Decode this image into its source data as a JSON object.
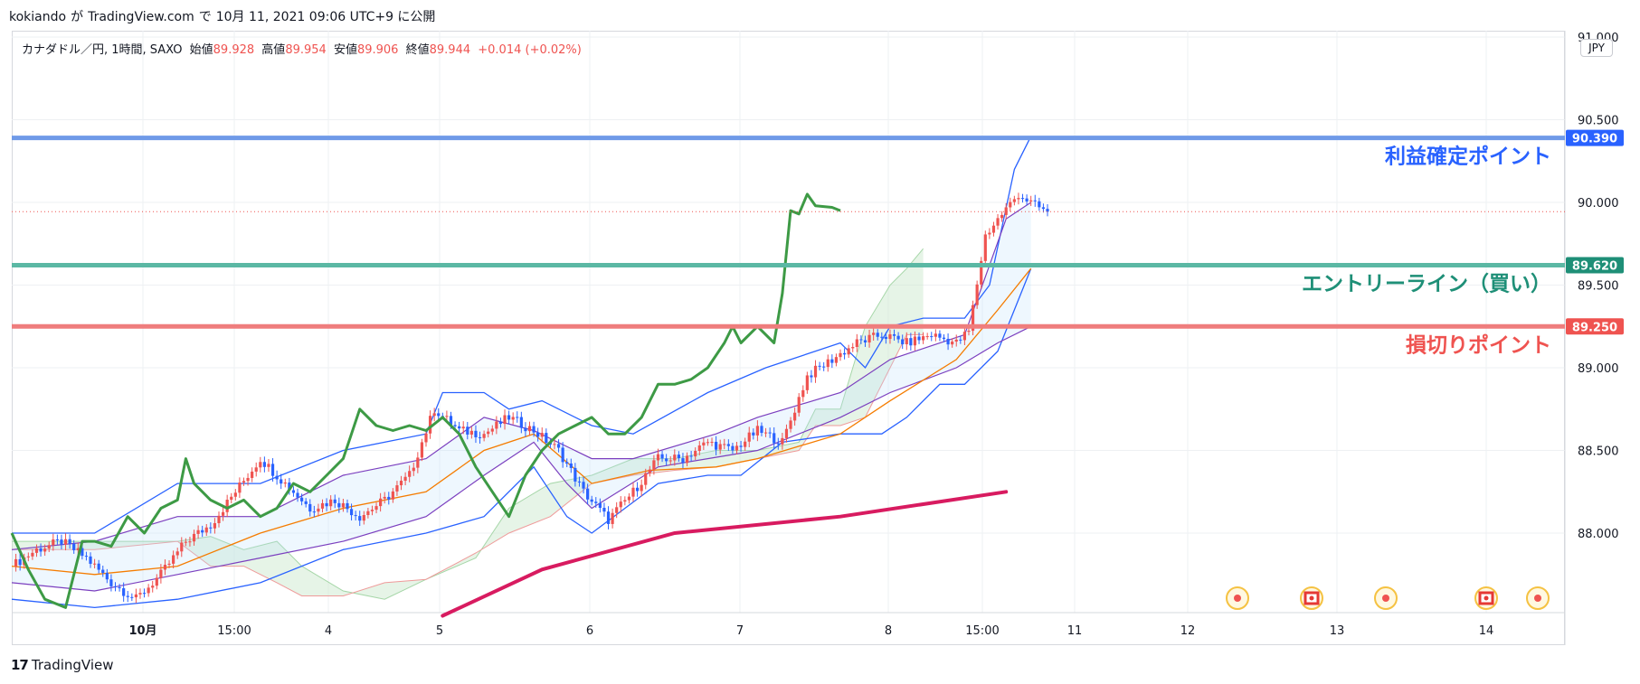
{
  "header": {
    "author": "kokiando",
    "ga": "が",
    "site": "TradingView.com",
    "de": "で",
    "published": "10月 11, 2021 09:06 UTC+9 に公開"
  },
  "legend": {
    "symbol": "カナダドル／円, 1時間, SAXO",
    "open_label": "始値",
    "open": "89.928",
    "high_label": "高値",
    "high": "89.954",
    "low_label": "安値",
    "low": "89.906",
    "close_label": "終値",
    "close": "89.944",
    "change": "+0.014 (+0.02%)"
  },
  "currency": "JPY",
  "footer": {
    "brand_mark": "17",
    "brand": "TradingView"
  },
  "colors": {
    "up": "#ef5350",
    "down": "#2962ff",
    "take_profit": "#6f9ae8",
    "entry": "#5bb8a4",
    "stop_loss": "#ef7d7d",
    "take_profit_label": "#2962ff",
    "entry_label": "#1e8f77",
    "stop_loss_label": "#ef5350",
    "lagging_span": "#3d9a45",
    "long_ma": "#d81b60",
    "bollinger_outer": "#2962ff",
    "bollinger_inner": "#7b3fbf",
    "mid_ma": "#f57c00"
  },
  "chart_data": {
    "type": "candlestick",
    "title": "カナダドル／円, 1時間, SAXO",
    "ylim": [
      87.55,
      91.05
    ],
    "y_ticks": [
      "91.000",
      "90.500",
      "90.000",
      "89.500",
      "89.000",
      "88.500",
      "88.000"
    ],
    "x_ticks": [
      "10月",
      "15:00",
      "4",
      "5",
      "6",
      "7",
      "8",
      "15:00",
      "11",
      "12",
      "13",
      "14"
    ],
    "current_price": 89.944,
    "levels": [
      {
        "name": "利益確定ポイント",
        "price_label": "90.390",
        "value": 90.39
      },
      {
        "name": "エントリーライン（買い）",
        "price_label": "89.620",
        "value": 89.62
      },
      {
        "name": "損切りポイント",
        "price_label": "89.250",
        "value": 89.25
      }
    ],
    "candle_anchors": [
      [
        0,
        87.8
      ],
      [
        6,
        87.9
      ],
      [
        12,
        87.95
      ],
      [
        18,
        87.85
      ],
      [
        24,
        87.7
      ],
      [
        30,
        87.6
      ],
      [
        36,
        87.75
      ],
      [
        42,
        87.95
      ],
      [
        48,
        88.05
      ],
      [
        54,
        88.25
      ],
      [
        60,
        88.45
      ],
      [
        66,
        88.3
      ],
      [
        72,
        88.15
      ],
      [
        78,
        88.2
      ],
      [
        84,
        88.1
      ],
      [
        90,
        88.2
      ],
      [
        96,
        88.35
      ],
      [
        102,
        88.75
      ],
      [
        108,
        88.62
      ],
      [
        114,
        88.6
      ],
      [
        120,
        88.7
      ],
      [
        126,
        88.62
      ],
      [
        132,
        88.5
      ],
      [
        138,
        88.25
      ],
      [
        144,
        88.08
      ],
      [
        150,
        88.25
      ],
      [
        156,
        88.45
      ],
      [
        162,
        88.45
      ],
      [
        168,
        88.55
      ],
      [
        174,
        88.5
      ],
      [
        180,
        88.62
      ],
      [
        186,
        88.55
      ],
      [
        192,
        88.95
      ],
      [
        198,
        89.05
      ],
      [
        204,
        89.15
      ],
      [
        210,
        89.2
      ],
      [
        216,
        89.15
      ],
      [
        222,
        89.2
      ],
      [
        228,
        89.15
      ],
      [
        231,
        89.22
      ],
      [
        235,
        89.8
      ],
      [
        239,
        89.93
      ],
      [
        243,
        90.05
      ],
      [
        247,
        89.98
      ],
      [
        250,
        89.944
      ]
    ],
    "lagging_span": [
      [
        0,
        88.0
      ],
      [
        4,
        87.78
      ],
      [
        8,
        87.6
      ],
      [
        13,
        87.55
      ],
      [
        17,
        87.95
      ],
      [
        20,
        87.95
      ],
      [
        24,
        87.92
      ],
      [
        28,
        88.1
      ],
      [
        32,
        88.0
      ],
      [
        36,
        88.15
      ],
      [
        40,
        88.2
      ],
      [
        42,
        88.45
      ],
      [
        44,
        88.3
      ],
      [
        48,
        88.2
      ],
      [
        52,
        88.15
      ],
      [
        56,
        88.2
      ],
      [
        60,
        88.1
      ],
      [
        64,
        88.15
      ],
      [
        68,
        88.3
      ],
      [
        72,
        88.25
      ],
      [
        76,
        88.35
      ],
      [
        80,
        88.45
      ],
      [
        84,
        88.75
      ],
      [
        88,
        88.65
      ],
      [
        92,
        88.62
      ],
      [
        96,
        88.65
      ],
      [
        100,
        88.62
      ],
      [
        104,
        88.7
      ],
      [
        108,
        88.6
      ],
      [
        112,
        88.4
      ],
      [
        116,
        88.25
      ],
      [
        120,
        88.1
      ],
      [
        124,
        88.35
      ],
      [
        128,
        88.5
      ],
      [
        132,
        88.6
      ],
      [
        136,
        88.65
      ],
      [
        140,
        88.7
      ],
      [
        144,
        88.6
      ],
      [
        148,
        88.6
      ],
      [
        152,
        88.7
      ],
      [
        156,
        88.9
      ],
      [
        160,
        88.9
      ],
      [
        164,
        88.93
      ],
      [
        168,
        89.0
      ],
      [
        172,
        89.15
      ],
      [
        174,
        89.25
      ],
      [
        176,
        89.15
      ],
      [
        180,
        89.25
      ],
      [
        184,
        89.15
      ],
      [
        186,
        89.45
      ],
      [
        188,
        89.95
      ],
      [
        190,
        89.93
      ],
      [
        192,
        90.05
      ],
      [
        194,
        89.98
      ],
      [
        198,
        89.97
      ],
      [
        200,
        89.95
      ]
    ],
    "long_ma": [
      [
        104,
        87.5
      ],
      [
        128,
        87.78
      ],
      [
        160,
        88.0
      ],
      [
        200,
        88.1
      ],
      [
        240,
        88.25
      ]
    ],
    "bollinger": {
      "upper": [
        [
          0,
          88.0
        ],
        [
          20,
          88.0
        ],
        [
          40,
          88.3
        ],
        [
          60,
          88.3
        ],
        [
          80,
          88.5
        ],
        [
          100,
          88.6
        ],
        [
          104,
          88.85
        ],
        [
          114,
          88.85
        ],
        [
          120,
          88.75
        ],
        [
          128,
          88.8
        ],
        [
          140,
          88.65
        ],
        [
          150,
          88.6
        ],
        [
          168,
          88.85
        ],
        [
          182,
          89.0
        ],
        [
          200,
          89.15
        ],
        [
          206,
          89.0
        ],
        [
          212,
          89.25
        ],
        [
          220,
          89.3
        ],
        [
          230,
          89.3
        ],
        [
          236,
          89.5
        ],
        [
          242,
          90.2
        ],
        [
          246,
          90.4
        ]
      ],
      "lower": [
        [
          0,
          87.6
        ],
        [
          20,
          87.55
        ],
        [
          40,
          87.6
        ],
        [
          60,
          87.7
        ],
        [
          80,
          87.9
        ],
        [
          100,
          88.0
        ],
        [
          114,
          88.1
        ],
        [
          126,
          88.4
        ],
        [
          134,
          88.1
        ],
        [
          140,
          88.0
        ],
        [
          156,
          88.3
        ],
        [
          168,
          88.35
        ],
        [
          176,
          88.35
        ],
        [
          186,
          88.55
        ],
        [
          200,
          88.6
        ],
        [
          210,
          88.6
        ],
        [
          216,
          88.7
        ],
        [
          224,
          88.9
        ],
        [
          230,
          88.9
        ],
        [
          238,
          89.1
        ],
        [
          246,
          89.6
        ]
      ],
      "upper_inner": [
        [
          0,
          87.9
        ],
        [
          20,
          87.95
        ],
        [
          40,
          88.1
        ],
        [
          60,
          88.1
        ],
        [
          80,
          88.35
        ],
        [
          100,
          88.45
        ],
        [
          114,
          88.7
        ],
        [
          126,
          88.62
        ],
        [
          140,
          88.45
        ],
        [
          150,
          88.45
        ],
        [
          170,
          88.6
        ],
        [
          180,
          88.7
        ],
        [
          200,
          88.85
        ],
        [
          212,
          89.05
        ],
        [
          230,
          89.2
        ],
        [
          240,
          89.9
        ],
        [
          246,
          90.0
        ]
      ],
      "lower_inner": [
        [
          0,
          87.7
        ],
        [
          20,
          87.65
        ],
        [
          40,
          87.75
        ],
        [
          60,
          87.85
        ],
        [
          80,
          87.95
        ],
        [
          100,
          88.1
        ],
        [
          114,
          88.35
        ],
        [
          126,
          88.55
        ],
        [
          134,
          88.3
        ],
        [
          140,
          88.15
        ],
        [
          156,
          88.4
        ],
        [
          168,
          88.45
        ],
        [
          180,
          88.5
        ],
        [
          200,
          88.7
        ],
        [
          212,
          88.85
        ],
        [
          228,
          89.0
        ],
        [
          238,
          89.15
        ],
        [
          246,
          89.25
        ]
      ]
    },
    "mid_ma": [
      [
        0,
        87.8
      ],
      [
        20,
        87.75
      ],
      [
        40,
        87.8
      ],
      [
        60,
        88.0
      ],
      [
        80,
        88.15
      ],
      [
        100,
        88.25
      ],
      [
        114,
        88.5
      ],
      [
        126,
        88.6
      ],
      [
        140,
        88.3
      ],
      [
        154,
        88.38
      ],
      [
        170,
        88.4
      ],
      [
        180,
        88.45
      ],
      [
        200,
        88.6
      ],
      [
        212,
        88.8
      ],
      [
        228,
        89.05
      ],
      [
        238,
        89.35
      ],
      [
        246,
        89.6
      ]
    ],
    "cloud_a": [
      [
        0,
        87.95
      ],
      [
        20,
        87.95
      ],
      [
        40,
        87.95
      ],
      [
        48,
        87.98
      ],
      [
        56,
        87.9
      ],
      [
        64,
        87.95
      ],
      [
        70,
        87.8
      ],
      [
        80,
        87.65
      ],
      [
        90,
        87.6
      ],
      [
        100,
        87.72
      ],
      [
        112,
        87.85
      ],
      [
        120,
        88.15
      ],
      [
        130,
        88.3
      ],
      [
        140,
        88.35
      ],
      [
        150,
        88.45
      ],
      [
        160,
        88.45
      ],
      [
        170,
        88.5
      ],
      [
        180,
        88.5
      ],
      [
        190,
        88.55
      ],
      [
        194,
        88.75
      ],
      [
        200,
        88.75
      ],
      [
        206,
        89.25
      ],
      [
        212,
        89.5
      ],
      [
        216,
        89.6
      ],
      [
        220,
        89.72
      ]
    ],
    "cloud_b": [
      [
        0,
        87.9
      ],
      [
        20,
        87.9
      ],
      [
        40,
        87.95
      ],
      [
        48,
        87.8
      ],
      [
        56,
        87.8
      ],
      [
        64,
        87.7
      ],
      [
        70,
        87.62
      ],
      [
        80,
        87.62
      ],
      [
        90,
        87.7
      ],
      [
        100,
        87.72
      ],
      [
        112,
        87.88
      ],
      [
        120,
        88.0
      ],
      [
        130,
        88.1
      ],
      [
        140,
        88.3
      ],
      [
        150,
        88.35
      ],
      [
        160,
        88.38
      ],
      [
        170,
        88.4
      ],
      [
        180,
        88.45
      ],
      [
        190,
        88.5
      ],
      [
        194,
        88.65
      ],
      [
        200,
        88.65
      ],
      [
        206,
        88.7
      ],
      [
        212,
        89.0
      ],
      [
        216,
        89.2
      ],
      [
        220,
        89.2
      ]
    ]
  },
  "event_markers": [
    "●",
    "🇨🇦",
    "●",
    "🇨🇦",
    "●"
  ]
}
